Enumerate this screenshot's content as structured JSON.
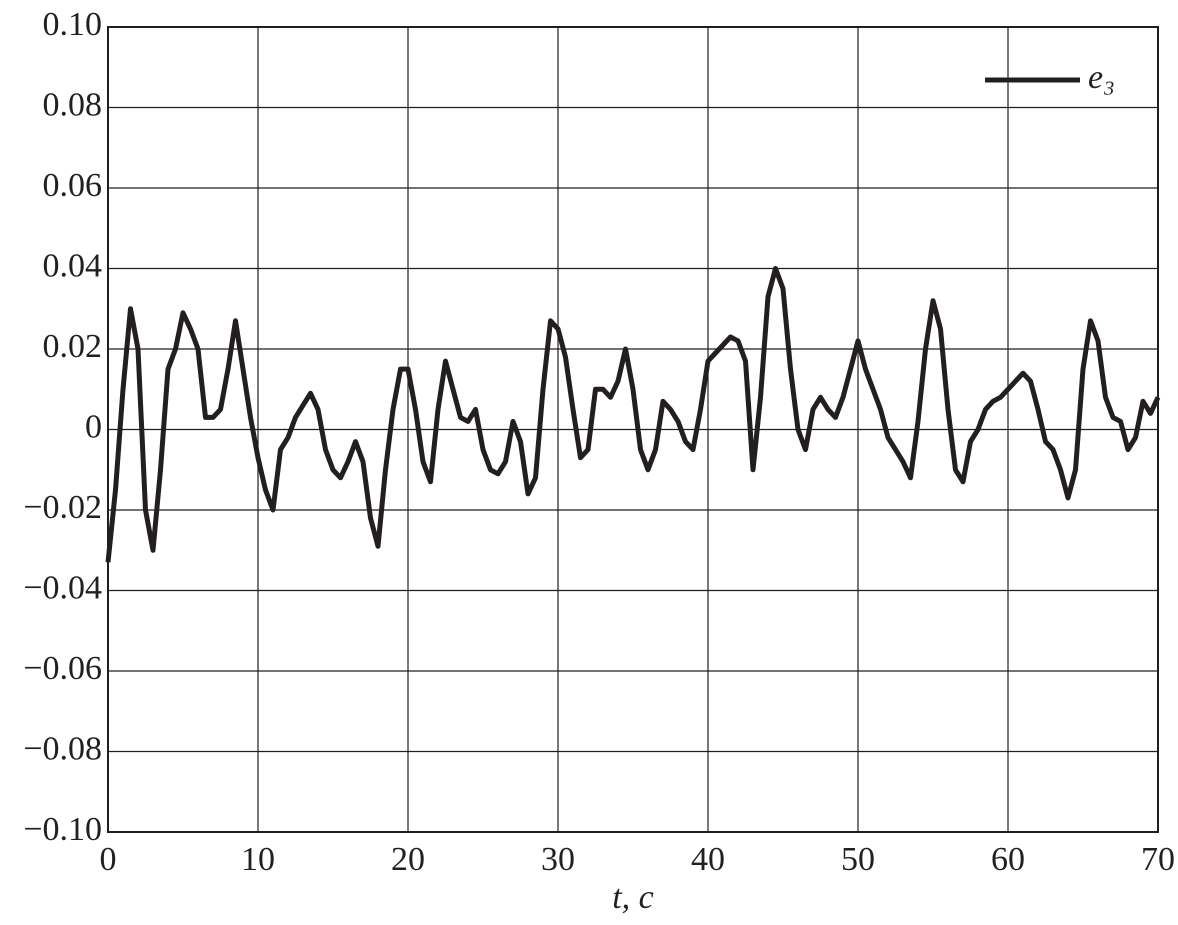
{
  "chart_data": {
    "type": "line",
    "x_label": "t, c",
    "x": [
      0,
      0.5,
      1,
      1.5,
      2,
      2.5,
      3,
      3.5,
      4,
      4.5,
      5,
      5.5,
      6,
      6.5,
      7,
      7.5,
      8,
      8.5,
      9,
      9.5,
      10,
      10.5,
      11,
      11.5,
      12,
      12.5,
      13,
      13.5,
      14,
      14.5,
      15,
      15.5,
      16,
      16.5,
      17,
      17.5,
      18,
      18.5,
      19,
      19.5,
      20,
      20.5,
      21,
      21.5,
      22,
      22.5,
      23,
      23.5,
      24,
      24.5,
      25,
      25.5,
      26,
      26.5,
      27,
      27.5,
      28,
      28.5,
      29,
      29.5,
      30,
      30.5,
      31,
      31.5,
      32,
      32.5,
      33,
      33.5,
      34,
      34.5,
      35,
      35.5,
      36,
      36.5,
      37,
      37.5,
      38,
      38.5,
      39,
      39.5,
      40,
      40.5,
      41,
      41.5,
      42,
      42.5,
      43,
      43.5,
      44,
      44.5,
      45,
      45.5,
      46,
      46.5,
      47,
      47.5,
      48,
      48.5,
      49,
      49.5,
      50,
      50.5,
      51,
      51.5,
      52,
      52.5,
      53,
      53.5,
      54,
      54.5,
      55,
      55.5,
      56,
      56.5,
      57,
      57.5,
      58,
      58.5,
      59,
      59.5,
      60,
      60.5,
      61,
      61.5,
      62,
      62.5,
      63,
      63.5,
      64,
      64.5,
      65,
      65.5,
      66,
      66.5,
      67,
      67.5,
      68,
      68.5,
      69,
      69.5,
      70
    ],
    "series": [
      {
        "name": "e₃",
        "color": "#231f20",
        "values": [
          -0.033,
          -0.015,
          0.01,
          0.03,
          0.02,
          -0.02,
          -0.03,
          -0.01,
          0.015,
          0.02,
          0.029,
          0.025,
          0.02,
          0.003,
          0.003,
          0.005,
          0.015,
          0.027,
          0.015,
          0.003,
          -0.007,
          -0.015,
          -0.02,
          -0.005,
          -0.002,
          0.003,
          0.006,
          0.009,
          0.005,
          -0.005,
          -0.01,
          -0.012,
          -0.008,
          -0.003,
          -0.008,
          -0.022,
          -0.029,
          -0.01,
          0.005,
          0.015,
          0.015,
          0.005,
          -0.008,
          -0.013,
          0.005,
          0.017,
          0.01,
          0.003,
          0.002,
          0.005,
          -0.005,
          -0.01,
          -0.011,
          -0.008,
          0.002,
          -0.003,
          -0.016,
          -0.012,
          0.01,
          0.027,
          0.025,
          0.018,
          0.005,
          -0.007,
          -0.005,
          0.01,
          0.01,
          0.008,
          0.012,
          0.02,
          0.01,
          -0.005,
          -0.01,
          -0.005,
          0.007,
          0.005,
          0.002,
          -0.003,
          -0.005,
          0.005,
          0.017,
          0.019,
          0.021,
          0.023,
          0.022,
          0.017,
          -0.01,
          0.008,
          0.033,
          0.04,
          0.035,
          0.015,
          0,
          -0.005,
          0.005,
          0.008,
          0.005,
          0.003,
          0.008,
          0.015,
          0.022,
          0.015,
          0.01,
          0.005,
          -0.002,
          -0.005,
          -0.008,
          -0.012,
          0.002,
          0.02,
          0.032,
          0.025,
          0.005,
          -0.01,
          -0.013,
          -0.003,
          0,
          0.005,
          0.007,
          0.008,
          0.01,
          0.012,
          0.014,
          0.012,
          0.005,
          -0.003,
          -0.005,
          -0.01,
          -0.017,
          -0.01,
          0.015,
          0.027,
          0.022,
          0.008,
          0.003,
          0.002,
          -0.005,
          -0.002,
          0.007,
          0.004,
          0.008
        ]
      }
    ],
    "xlim": [
      0,
      70
    ],
    "xticks": [
      0,
      10,
      20,
      30,
      40,
      50,
      60,
      70
    ],
    "ylim": [
      -0.1,
      0.1
    ],
    "yticks": [
      {
        "value": -0.1,
        "label": "−0.10"
      },
      {
        "value": -0.08,
        "label": "−0.08"
      },
      {
        "value": -0.06,
        "label": "−0.06"
      },
      {
        "value": -0.04,
        "label": "−0.04"
      },
      {
        "value": -0.02,
        "label": "−0.02"
      },
      0,
      0.02,
      0.04,
      0.06,
      0.08,
      {
        "value": 0.1,
        "label": "0.10"
      }
    ],
    "grid": true,
    "legend": "upper right"
  }
}
